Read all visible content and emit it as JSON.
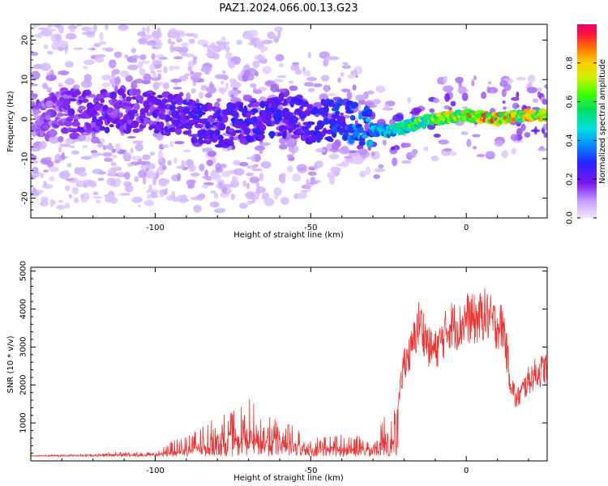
{
  "title": "PAZ1.2024.066.00.13.G23",
  "chart_data": [
    {
      "type": "heatmap",
      "xlabel": "Height of straight line (km)",
      "ylabel": "Frequency (Hz)",
      "xlim": [
        -140,
        26
      ],
      "ylim": [
        -25,
        24
      ],
      "xticks": [
        -100,
        -50,
        0
      ],
      "yticks": [
        20,
        10,
        0,
        -10,
        -20
      ],
      "colorbar": {
        "label": "Normalized spectral amplitude",
        "range": [
          0.0,
          1.0
        ],
        "ticks": [
          0.0,
          0.2,
          0.4,
          0.6,
          0.8
        ]
      },
      "ridge": {
        "x": [
          -140,
          -120,
          -100,
          -80,
          -60,
          -50,
          -40,
          -30,
          -25,
          -20,
          -10,
          0,
          10,
          20,
          26
        ],
        "frequency": [
          1,
          2,
          2,
          -2,
          1,
          -1,
          0,
          -3,
          -3,
          -2,
          0,
          1,
          0,
          1,
          1
        ],
        "amplitude": [
          0.15,
          0.22,
          0.25,
          0.28,
          0.3,
          0.3,
          0.35,
          0.5,
          0.6,
          0.65,
          0.8,
          0.92,
          0.95,
          0.9,
          0.88
        ]
      }
    },
    {
      "type": "line",
      "xlabel": "Height of straight line (km)",
      "ylabel": "SNR (10 * v/v)",
      "xlim": [
        -140,
        26
      ],
      "ylim": [
        0,
        5100
      ],
      "xticks": [
        -100,
        -50,
        0
      ],
      "yticks": [
        1000,
        2000,
        3000,
        4000,
        5000
      ],
      "color": "#ee3333",
      "envelope": {
        "x": [
          -140,
          -120,
          -110,
          -100,
          -95,
          -90,
          -85,
          -80,
          -75,
          -70,
          -65,
          -60,
          -55,
          -50,
          -45,
          -40,
          -35,
          -30,
          -28,
          -26,
          -24,
          -22,
          -20,
          -18,
          -15,
          -12,
          -10,
          -8,
          -5,
          -2,
          0,
          3,
          6,
          9,
          12,
          14,
          16,
          18,
          20,
          22,
          24,
          26
        ],
        "snr": [
          150,
          180,
          250,
          220,
          500,
          700,
          900,
          1200,
          1300,
          1700,
          1200,
          1100,
          900,
          700,
          700,
          700,
          700,
          650,
          900,
          1300,
          1200,
          1500,
          3000,
          3200,
          4200,
          3400,
          3300,
          3600,
          4100,
          4000,
          4300,
          4200,
          4400,
          4100,
          4000,
          2500,
          1800,
          2100,
          2400,
          2600,
          2700,
          2800
        ]
      }
    }
  ]
}
